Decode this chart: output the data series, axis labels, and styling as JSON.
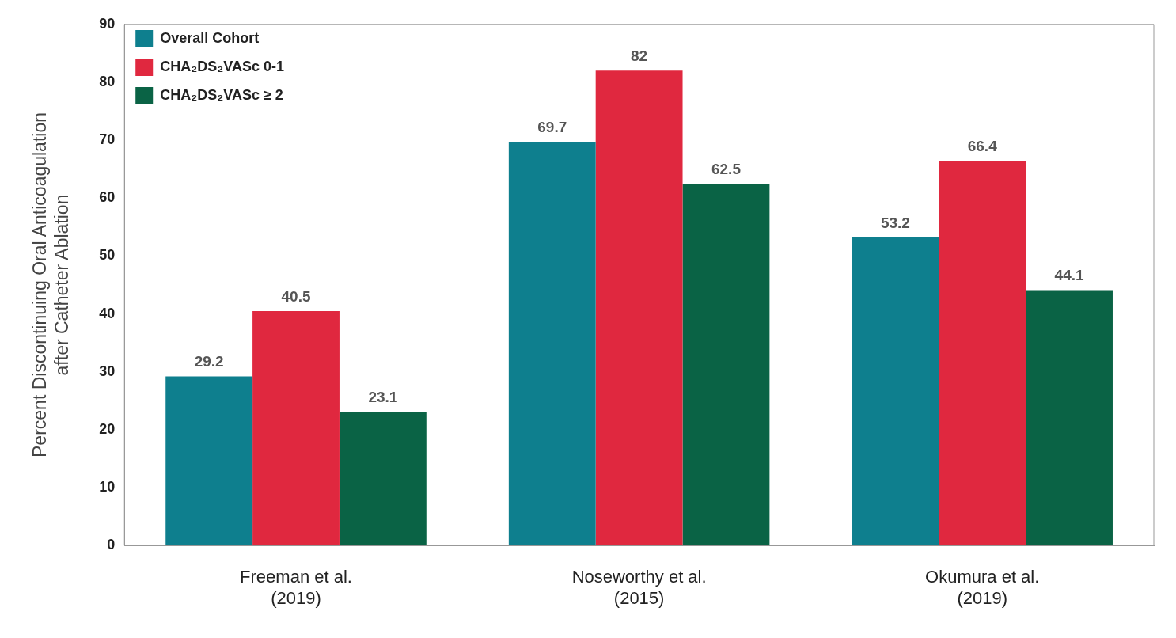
{
  "chart_data": {
    "type": "bar",
    "ylabel": "Percent Discontinuing Oral Anticoagulation\nafter Catheter Ablation",
    "categories": [
      "Freeman et al.\n(2019)",
      "Noseworthy et al.\n(2015)",
      "Okumura et al.\n(2019)"
    ],
    "series": [
      {
        "name": "Overall Cohort",
        "color": "#0e7f8e",
        "values": [
          29.2,
          69.7,
          53.2
        ]
      },
      {
        "name": "CHA₂DS₂VASc 0-1",
        "color": "#e0283f",
        "values": [
          40.5,
          82,
          66.4
        ]
      },
      {
        "name": "CHA₂DS₂VASc ≥ 2",
        "color": "#0a6345",
        "values": [
          23.1,
          62.5,
          44.1
        ]
      }
    ],
    "ylim": [
      0,
      90
    ],
    "yticks": [
      0,
      10,
      20,
      30,
      40,
      50,
      60,
      70,
      80,
      90
    ],
    "grid": false,
    "legend": "top left",
    "data_labels": true
  }
}
